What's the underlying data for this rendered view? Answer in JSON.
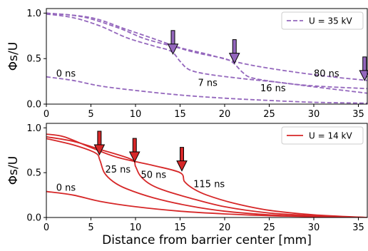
{
  "chart_data": [
    {
      "type": "line",
      "xlim": [
        0,
        36
      ],
      "ylim": [
        0,
        1.05
      ],
      "xticks": [
        "0",
        "5",
        "10",
        "15",
        "20",
        "25",
        "30",
        "35"
      ],
      "yticks": [
        "0.0",
        "0.5",
        "1.0"
      ],
      "ylabel": "Φs/U",
      "xlabel": "",
      "legend": {
        "label": "U = 35 kV",
        "placement": "top-right",
        "style": "dashed"
      },
      "color": "#9467bd",
      "series": [
        {
          "label": "0 ns",
          "points": [
            [
              0,
              0.3
            ],
            [
              3,
              0.26
            ],
            [
              6,
              0.2
            ],
            [
              10,
              0.15
            ],
            [
              15,
              0.1
            ],
            [
              20,
              0.065
            ],
            [
              25,
              0.04
            ],
            [
              30,
              0.02
            ],
            [
              36,
              0.01
            ]
          ]
        },
        {
          "label": "7 ns",
          "points": [
            [
              0,
              0.99
            ],
            [
              3,
              0.95
            ],
            [
              6,
              0.86
            ],
            [
              9,
              0.73
            ],
            [
              12,
              0.64
            ],
            [
              14,
              0.58
            ],
            [
              15,
              0.47
            ],
            [
              16,
              0.38
            ],
            [
              18,
              0.33
            ],
            [
              22,
              0.28
            ],
            [
              26,
              0.24
            ],
            [
              30,
              0.19
            ],
            [
              36,
              0.12
            ]
          ]
        },
        {
          "label": "16 ns",
          "points": [
            [
              0,
              1.0
            ],
            [
              4,
              0.96
            ],
            [
              8,
              0.84
            ],
            [
              11,
              0.72
            ],
            [
              14,
              0.64
            ],
            [
              17,
              0.56
            ],
            [
              20,
              0.5
            ],
            [
              21,
              0.45
            ],
            [
              22,
              0.35
            ],
            [
              23,
              0.29
            ],
            [
              26,
              0.24
            ],
            [
              30,
              0.2
            ],
            [
              36,
              0.17
            ]
          ]
        },
        {
          "label": "80 ns",
          "points": [
            [
              0,
              1.0
            ],
            [
              5,
              0.95
            ],
            [
              9,
              0.82
            ],
            [
              12,
              0.72
            ],
            [
              15,
              0.62
            ],
            [
              18,
              0.55
            ],
            [
              21,
              0.47
            ],
            [
              24,
              0.41
            ],
            [
              28,
              0.35
            ],
            [
              32,
              0.3
            ],
            [
              35,
              0.27
            ],
            [
              36,
              0.26
            ]
          ]
        }
      ],
      "annotations": [
        {
          "text": "0 ns",
          "x": 1.1,
          "y": 0.3
        },
        {
          "text": "7 ns",
          "x": 17,
          "y": 0.2
        },
        {
          "text": "16 ns",
          "x": 24,
          "y": 0.14
        },
        {
          "text": "80 ns",
          "x": 30,
          "y": 0.3
        }
      ],
      "arrows": [
        {
          "x": 14.2,
          "y": 0.55
        },
        {
          "x": 21.1,
          "y": 0.45
        },
        {
          "x": 35.7,
          "y": 0.26
        }
      ],
      "arrow_color": "#9467bd"
    },
    {
      "type": "line",
      "xlim": [
        0,
        36
      ],
      "ylim": [
        0,
        1.05
      ],
      "xticks": [
        "0",
        "5",
        "10",
        "15",
        "20",
        "25",
        "30",
        "35"
      ],
      "yticks": [
        "0.0",
        "0.5",
        "1.0"
      ],
      "ylabel": "Φs/U",
      "xlabel": "Distance from barrier center [mm]",
      "legend": {
        "label": "U = 14 kV",
        "placement": "top-right",
        "style": "solid"
      },
      "color": "#d62728",
      "series": [
        {
          "label": "0 ns",
          "points": [
            [
              0,
              0.29
            ],
            [
              3,
              0.25
            ],
            [
              6,
              0.18
            ],
            [
              10,
              0.12
            ],
            [
              15,
              0.07
            ],
            [
              20,
              0.04
            ],
            [
              25,
              0.02
            ],
            [
              30,
              0.01
            ],
            [
              36,
              0.0
            ]
          ]
        },
        {
          "label": "25 ns",
          "points": [
            [
              0,
              0.88
            ],
            [
              3,
              0.81
            ],
            [
              5.5,
              0.72
            ],
            [
              6,
              0.64
            ],
            [
              6.5,
              0.5
            ],
            [
              7.5,
              0.4
            ],
            [
              9,
              0.32
            ],
            [
              12,
              0.22
            ],
            [
              16,
              0.13
            ],
            [
              20,
              0.07
            ],
            [
              25,
              0.03
            ],
            [
              30,
              0.01
            ],
            [
              36,
              0.0
            ]
          ]
        },
        {
          "label": "50 ns",
          "points": [
            [
              0,
              0.9
            ],
            [
              3,
              0.85
            ],
            [
              6,
              0.76
            ],
            [
              9.5,
              0.65
            ],
            [
              10,
              0.57
            ],
            [
              10.5,
              0.47
            ],
            [
              11.5,
              0.38
            ],
            [
              13,
              0.31
            ],
            [
              16,
              0.22
            ],
            [
              20,
              0.12
            ],
            [
              25,
              0.05
            ],
            [
              30,
              0.02
            ],
            [
              36,
              0.0
            ]
          ]
        },
        {
          "label": "115 ns",
          "points": [
            [
              0,
              0.93
            ],
            [
              2,
              0.9
            ],
            [
              5,
              0.78
            ],
            [
              8,
              0.67
            ],
            [
              12,
              0.58
            ],
            [
              15,
              0.5
            ],
            [
              15.5,
              0.4
            ],
            [
              16.5,
              0.32
            ],
            [
              18,
              0.25
            ],
            [
              21,
              0.16
            ],
            [
              25,
              0.08
            ],
            [
              30,
              0.03
            ],
            [
              36,
              0.0
            ]
          ]
        }
      ],
      "annotations": [
        {
          "text": "0 ns",
          "x": 1.1,
          "y": 0.3
        },
        {
          "text": "25 ns",
          "x": 6.6,
          "y": 0.5
        },
        {
          "text": "50 ns",
          "x": 10.6,
          "y": 0.44
        },
        {
          "text": "115 ns",
          "x": 16.5,
          "y": 0.34
        }
      ],
      "arrows": [
        {
          "x": 5.95,
          "y": 0.7
        },
        {
          "x": 9.9,
          "y": 0.62
        },
        {
          "x": 15.2,
          "y": 0.52
        }
      ],
      "arrow_color": "#d62728"
    }
  ]
}
